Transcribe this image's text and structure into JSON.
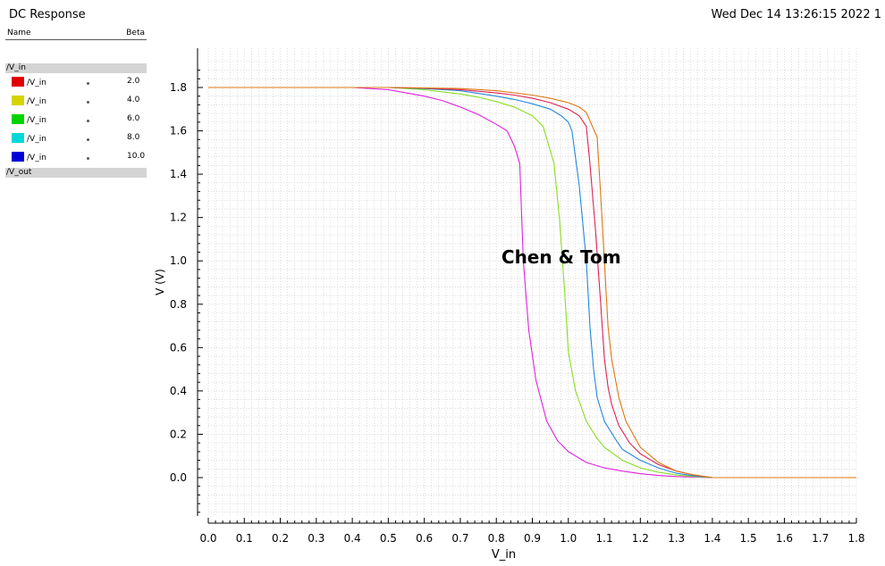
{
  "window": {
    "title": "DC Response",
    "datetime": "Wed Dec 14 13:26:15 2022  1"
  },
  "legend": {
    "name_header": "Name",
    "beta_header": "Beta",
    "group_in": "/V_in",
    "group_out": "/V_out",
    "items": [
      {
        "label": "/V_in",
        "value": "2.0",
        "color": "#e00000"
      },
      {
        "label": "/V_in",
        "value": "4.0",
        "color": "#d4d400"
      },
      {
        "label": "/V_in",
        "value": "6.0",
        "color": "#00d400"
      },
      {
        "label": "/V_in",
        "value": "8.0",
        "color": "#00d8d8"
      },
      {
        "label": "/V_in",
        "value": "10.0",
        "color": "#0000d8"
      }
    ]
  },
  "chart_data": {
    "type": "line",
    "title": "",
    "xlabel": "V_in",
    "ylabel": "V (V)",
    "xlim": [
      0.0,
      1.8
    ],
    "ylim": [
      -0.18,
      1.95
    ],
    "xticks": [
      "0.0",
      "0.1",
      "0.2",
      "0.3",
      "0.4",
      "0.5",
      "0.6",
      "0.7",
      "0.8",
      "0.9",
      "1.0",
      "1.1",
      "1.2",
      "1.3",
      "1.4",
      "1.5",
      "1.6",
      "1.7",
      "1.8"
    ],
    "yticks": [
      "0.0",
      "0.2",
      "0.4",
      "0.6",
      "0.8",
      "1.0",
      "1.2",
      "1.4",
      "1.6",
      "1.8"
    ],
    "grid": true,
    "annotation": "Chen & Tom",
    "annotation_pos": [
      0.98,
      1.0
    ],
    "series": [
      {
        "color": "#dd22dd",
        "points": [
          [
            0,
            1.8
          ],
          [
            0.4,
            1.8
          ],
          [
            0.5,
            1.79
          ],
          [
            0.55,
            1.775
          ],
          [
            0.6,
            1.76
          ],
          [
            0.65,
            1.74
          ],
          [
            0.7,
            1.71
          ],
          [
            0.75,
            1.675
          ],
          [
            0.8,
            1.63
          ],
          [
            0.83,
            1.6
          ],
          [
            0.85,
            1.53
          ],
          [
            0.865,
            1.45
          ],
          [
            0.875,
            1.0
          ],
          [
            0.89,
            0.68
          ],
          [
            0.91,
            0.45
          ],
          [
            0.94,
            0.26
          ],
          [
            0.97,
            0.17
          ],
          [
            1.0,
            0.12
          ],
          [
            1.05,
            0.07
          ],
          [
            1.1,
            0.045
          ],
          [
            1.15,
            0.03
          ],
          [
            1.2,
            0.018
          ],
          [
            1.25,
            0.01
          ],
          [
            1.3,
            0.005
          ],
          [
            1.4,
            0.0
          ],
          [
            1.8,
            0.0
          ]
        ]
      },
      {
        "color": "#88dd22",
        "points": [
          [
            0,
            1.8
          ],
          [
            0.5,
            1.8
          ],
          [
            0.6,
            1.79
          ],
          [
            0.65,
            1.78
          ],
          [
            0.7,
            1.77
          ],
          [
            0.75,
            1.755
          ],
          [
            0.8,
            1.735
          ],
          [
            0.85,
            1.71
          ],
          [
            0.9,
            1.67
          ],
          [
            0.93,
            1.62
          ],
          [
            0.96,
            1.45
          ],
          [
            0.975,
            1.2
          ],
          [
            0.99,
            0.85
          ],
          [
            1.0,
            0.58
          ],
          [
            1.02,
            0.4
          ],
          [
            1.05,
            0.26
          ],
          [
            1.08,
            0.18
          ],
          [
            1.1,
            0.14
          ],
          [
            1.15,
            0.08
          ],
          [
            1.2,
            0.045
          ],
          [
            1.25,
            0.025
          ],
          [
            1.3,
            0.012
          ],
          [
            1.35,
            0.005
          ],
          [
            1.4,
            0.0
          ],
          [
            1.8,
            0.0
          ]
        ]
      },
      {
        "color": "#2288dd",
        "points": [
          [
            0,
            1.8
          ],
          [
            0.5,
            1.8
          ],
          [
            0.6,
            1.795
          ],
          [
            0.7,
            1.785
          ],
          [
            0.8,
            1.76
          ],
          [
            0.85,
            1.745
          ],
          [
            0.9,
            1.725
          ],
          [
            0.95,
            1.7
          ],
          [
            0.98,
            1.67
          ],
          [
            1.0,
            1.64
          ],
          [
            1.01,
            1.6
          ],
          [
            1.03,
            1.35
          ],
          [
            1.05,
            1.0
          ],
          [
            1.06,
            0.7
          ],
          [
            1.07,
            0.5
          ],
          [
            1.08,
            0.37
          ],
          [
            1.1,
            0.26
          ],
          [
            1.13,
            0.18
          ],
          [
            1.15,
            0.13
          ],
          [
            1.2,
            0.08
          ],
          [
            1.25,
            0.045
          ],
          [
            1.3,
            0.02
          ],
          [
            1.35,
            0.008
          ],
          [
            1.4,
            0.0
          ],
          [
            1.8,
            0.0
          ]
        ]
      },
      {
        "color": "#dd2255",
        "points": [
          [
            0,
            1.8
          ],
          [
            0.5,
            1.8
          ],
          [
            0.6,
            1.797
          ],
          [
            0.7,
            1.79
          ],
          [
            0.8,
            1.775
          ],
          [
            0.85,
            1.765
          ],
          [
            0.9,
            1.75
          ],
          [
            0.95,
            1.73
          ],
          [
            1.0,
            1.7
          ],
          [
            1.03,
            1.67
          ],
          [
            1.05,
            1.62
          ],
          [
            1.06,
            1.45
          ],
          [
            1.075,
            1.15
          ],
          [
            1.09,
            0.8
          ],
          [
            1.1,
            0.55
          ],
          [
            1.11,
            0.42
          ],
          [
            1.12,
            0.34
          ],
          [
            1.14,
            0.24
          ],
          [
            1.17,
            0.16
          ],
          [
            1.2,
            0.11
          ],
          [
            1.25,
            0.06
          ],
          [
            1.3,
            0.03
          ],
          [
            1.35,
            0.012
          ],
          [
            1.4,
            0.0
          ],
          [
            1.8,
            0.0
          ]
        ]
      },
      {
        "color": "#dd7711",
        "points": [
          [
            0,
            1.8
          ],
          [
            0.5,
            1.8
          ],
          [
            0.6,
            1.798
          ],
          [
            0.7,
            1.795
          ],
          [
            0.8,
            1.785
          ],
          [
            0.9,
            1.765
          ],
          [
            0.95,
            1.75
          ],
          [
            1.0,
            1.73
          ],
          [
            1.03,
            1.71
          ],
          [
            1.05,
            1.685
          ],
          [
            1.08,
            1.57
          ],
          [
            1.09,
            1.3
          ],
          [
            1.1,
            1.0
          ],
          [
            1.11,
            0.7
          ],
          [
            1.12,
            0.55
          ],
          [
            1.14,
            0.37
          ],
          [
            1.16,
            0.26
          ],
          [
            1.2,
            0.14
          ],
          [
            1.25,
            0.07
          ],
          [
            1.3,
            0.03
          ],
          [
            1.35,
            0.012
          ],
          [
            1.4,
            0.0
          ],
          [
            1.8,
            0.0
          ]
        ]
      }
    ]
  }
}
